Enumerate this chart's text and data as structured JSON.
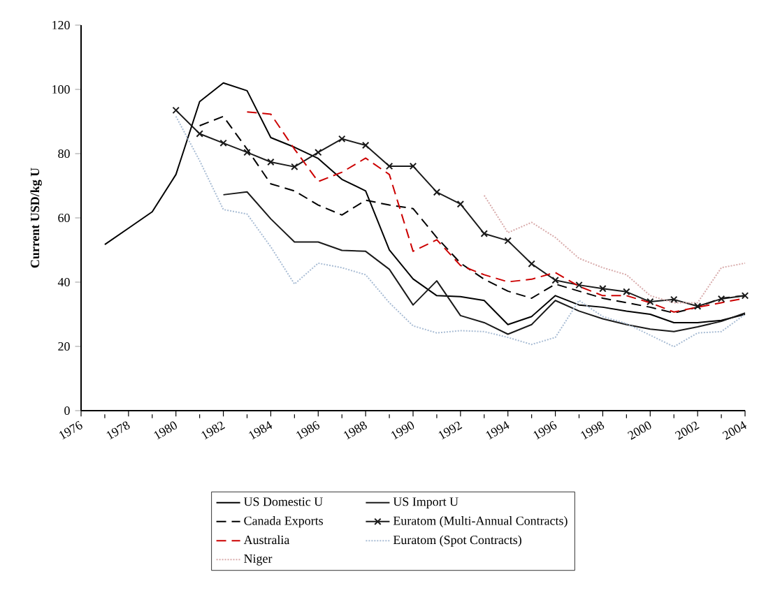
{
  "chart_data": {
    "type": "line",
    "ylabel": "Current USD/kg U",
    "x": [
      1977,
      1978,
      1979,
      1980,
      1981,
      1982,
      1983,
      1984,
      1985,
      1986,
      1987,
      1988,
      1989,
      1990,
      1991,
      1992,
      1993,
      1994,
      1995,
      1996,
      1997,
      1998,
      1999,
      2000,
      2001,
      2002,
      2003,
      2004
    ],
    "xlim": [
      1976,
      2004
    ],
    "xticks": [
      1976,
      1978,
      1980,
      1982,
      1984,
      1986,
      1988,
      1990,
      1992,
      1994,
      1996,
      1998,
      2000,
      2002,
      2004
    ],
    "ylim": [
      0,
      120
    ],
    "yticks": [
      0,
      20,
      40,
      60,
      80,
      100,
      120
    ],
    "grid": false,
    "legend": "bottom",
    "series": [
      {
        "name": "US Domestic U",
        "color": "#000000",
        "line_style": "solid",
        "marker": "none",
        "values": [
          51.7,
          56.8,
          61.9,
          73.5,
          96.2,
          102,
          99.6,
          85,
          82,
          78.5,
          72,
          68.4,
          50,
          41,
          35.8,
          35.5,
          34.3,
          26.8,
          29.3,
          35.8,
          32.9,
          32.2,
          31,
          30,
          27.4,
          27.4,
          28.1,
          30
        ]
      },
      {
        "name": "US Import U",
        "color": "#1a1a1a",
        "line_style": "solid",
        "marker": "none",
        "values": [
          null,
          null,
          null,
          null,
          null,
          67.2,
          68.1,
          59.7,
          52.5,
          52.5,
          49.9,
          49.6,
          44,
          32.9,
          40.4,
          29.6,
          27.4,
          23.8,
          26.8,
          34.3,
          31,
          28.6,
          26.8,
          25.4,
          24.6,
          26.1,
          27.8,
          30.4
        ]
      },
      {
        "name": "Canada Exports",
        "color": "#000000",
        "line_style": "dashed",
        "marker": "none",
        "values": [
          null,
          null,
          null,
          null,
          88.7,
          91.6,
          81.4,
          70.6,
          68.4,
          64,
          60.9,
          65.5,
          64,
          62.9,
          53.9,
          45.9,
          40.9,
          37.2,
          35,
          39.4,
          37.2,
          35,
          33.6,
          32.2,
          30.4,
          32.2,
          35,
          35.8
        ]
      },
      {
        "name": "Euratom (Multi-Annual Contracts)",
        "color": "#1a1a1a",
        "line_style": "solid",
        "marker": "cross",
        "values": [
          null,
          null,
          null,
          93.5,
          86.2,
          83.3,
          80.4,
          77.4,
          75.9,
          80.4,
          84.6,
          82.6,
          76.1,
          76.1,
          68,
          64.3,
          55.1,
          52.9,
          45.7,
          40.6,
          39.1,
          38,
          37,
          33.9,
          34.6,
          32.5,
          34.8,
          35.8
        ]
      },
      {
        "name": "Australia",
        "color": "#cc0000",
        "line_style": "dashed",
        "marker": "none",
        "values": [
          null,
          null,
          null,
          null,
          null,
          null,
          93,
          92.3,
          81.4,
          71.3,
          74.2,
          78.6,
          73.5,
          49.6,
          53.2,
          45.2,
          42.3,
          40.1,
          40.9,
          43,
          38.7,
          35.8,
          35.8,
          33.6,
          30.7,
          32.2,
          33.6,
          35
        ]
      },
      {
        "name": "Euratom (Spot Contracts)",
        "color": "#a8bcd4",
        "line_style": "dotted",
        "marker": "none",
        "values": [
          null,
          null,
          null,
          91.6,
          77.8,
          62.6,
          61.2,
          51,
          39.4,
          45.9,
          44.5,
          42.3,
          33.6,
          26.4,
          24.2,
          24.9,
          24.6,
          22.8,
          20.6,
          22.8,
          34.3,
          29.3,
          27.1,
          23.5,
          19.9,
          24.2,
          24.6,
          30
        ]
      },
      {
        "name": "Niger",
        "color": "#d8aaaa",
        "line_style": "dotted",
        "marker": "none",
        "values": [
          null,
          null,
          null,
          null,
          null,
          null,
          null,
          null,
          null,
          null,
          null,
          null,
          null,
          null,
          null,
          null,
          67,
          55.4,
          58.6,
          53.9,
          47.4,
          44.5,
          42.3,
          35.8,
          33.6,
          33.6,
          44.5,
          45.9
        ]
      }
    ]
  }
}
